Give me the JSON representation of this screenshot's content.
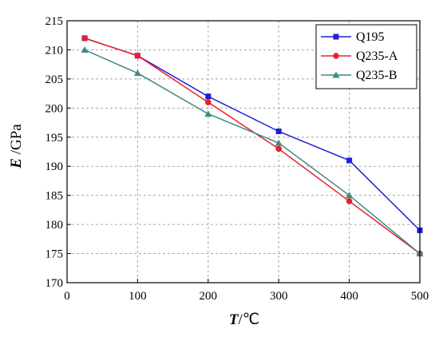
{
  "chart_data": {
    "type": "line",
    "x": [
      25,
      100,
      200,
      300,
      400,
      500
    ],
    "xticks": [
      0,
      100,
      200,
      300,
      400,
      500
    ],
    "yticks": [
      170,
      175,
      180,
      185,
      190,
      195,
      200,
      205,
      210,
      215
    ],
    "xlim": [
      0,
      500
    ],
    "ylim": [
      170,
      215
    ],
    "xlabel": {
      "symbol": "T",
      "unit": "/℃"
    },
    "ylabel": {
      "symbol": "E",
      "unit": " /GPa"
    },
    "grid": true,
    "legend": "top-right",
    "series": [
      {
        "name": "Q195",
        "color": "#1f1fd6",
        "marker": "square",
        "values": [
          212,
          209,
          202,
          196,
          191,
          179
        ]
      },
      {
        "name": "Q235-A",
        "color": "#e8202a",
        "marker": "circle",
        "values": [
          212,
          209,
          201,
          193,
          184,
          175
        ]
      },
      {
        "name": "Q235-B",
        "color": "#3f8a86",
        "marker": "triangle",
        "values": [
          210,
          206,
          199,
          194,
          185,
          175
        ]
      }
    ]
  }
}
